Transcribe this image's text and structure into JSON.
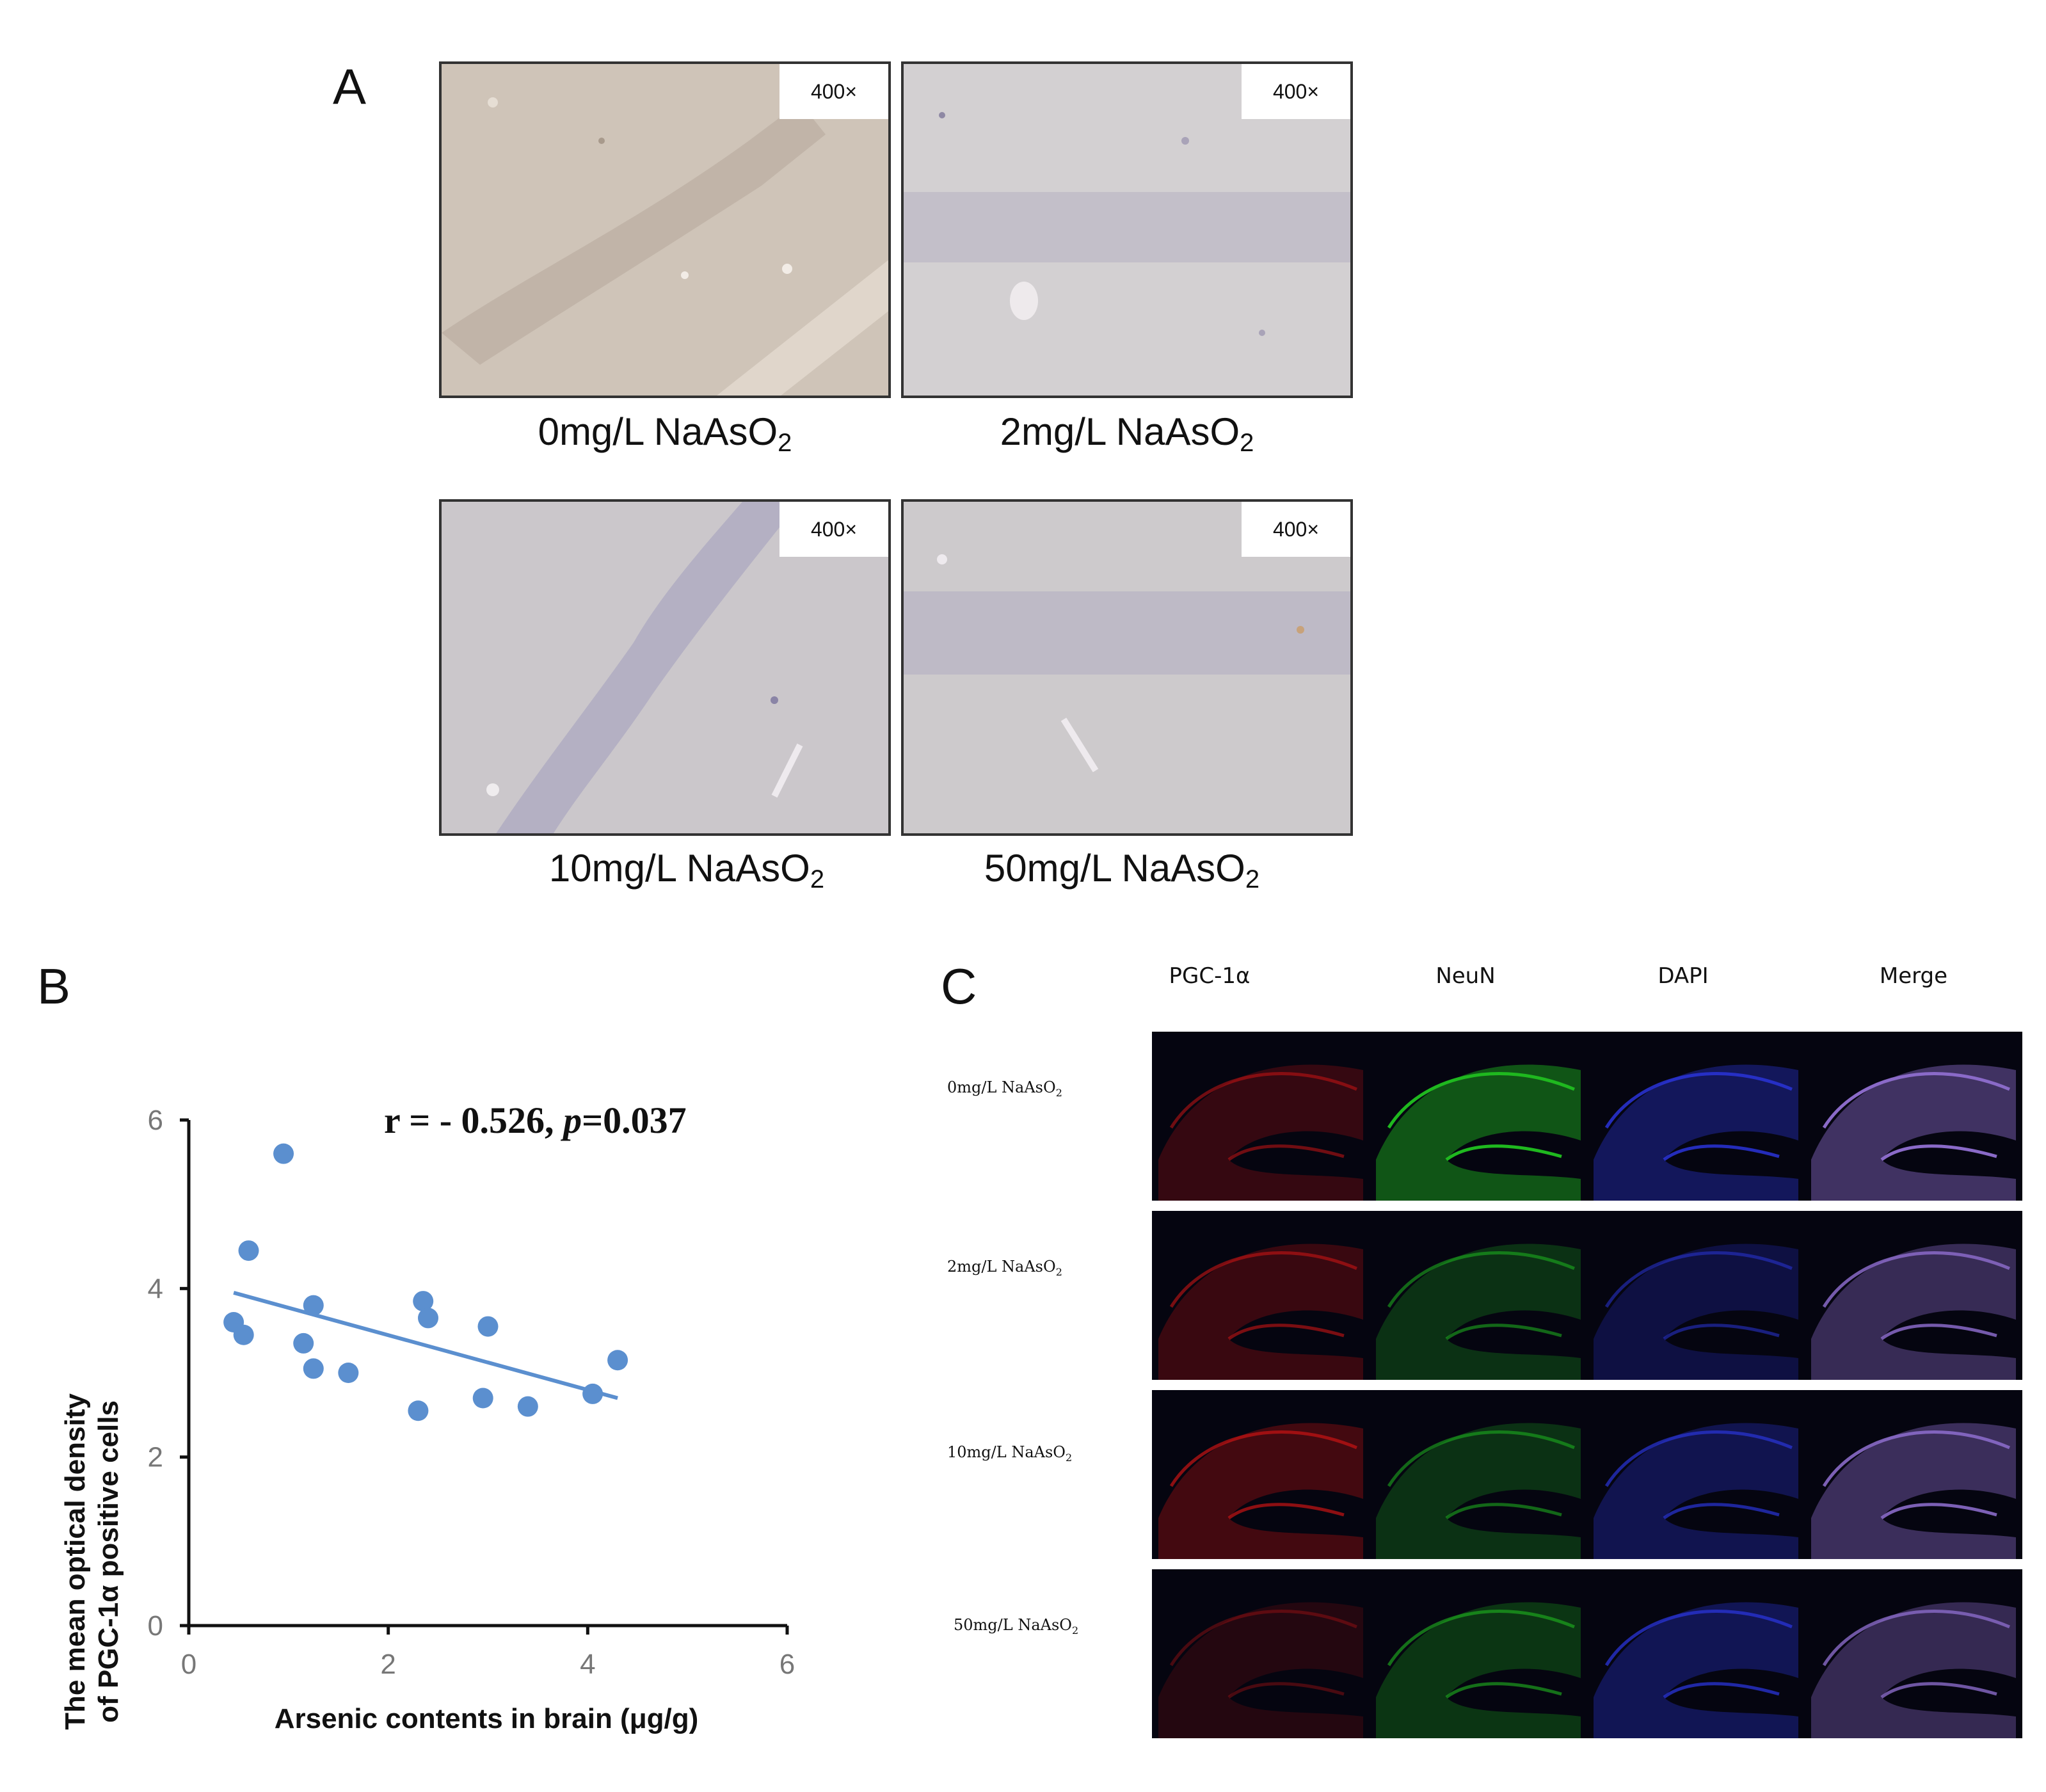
{
  "panels": {
    "A": {
      "letter": "A",
      "magnification": "400×",
      "images": [
        {
          "label_prefix": "0mg/L NaAsO",
          "label_sub": "2"
        },
        {
          "label_prefix": "2mg/L NaAsO",
          "label_sub": "2"
        },
        {
          "label_prefix": "10mg/L NaAsO",
          "label_sub": "2"
        },
        {
          "label_prefix": "50mg/L NaAsO",
          "label_sub": "2"
        }
      ]
    },
    "B": {
      "letter": "B"
    },
    "C": {
      "letter": "C",
      "columns": [
        "PGC-1α",
        "NeuN",
        "DAPI",
        "Merge"
      ],
      "rows": [
        {
          "label_prefix": "0mg/L NaAsO",
          "label_sub": "2"
        },
        {
          "label_prefix": "2mg/L NaAsO",
          "label_sub": "2"
        },
        {
          "label_prefix": "10mg/L NaAsO",
          "label_sub": "2"
        },
        {
          "label_prefix": "50mg/L NaAsO",
          "label_sub": "2"
        }
      ],
      "channel_colors": {
        "PGC-1α": "#c81414",
        "NeuN": "#1fb81f",
        "DAPI": "#2a34d8",
        "Merge": "#8a6ac8"
      }
    }
  },
  "chart_data": {
    "type": "scatter",
    "title_r": "r = - 0.526, ",
    "title_p_label": "p",
    "title_p_value": "=0.037",
    "xlabel": "Arsenic contents in brain (μg/g)",
    "ylabel_line1": "The mean optical density",
    "ylabel_line2": "of PGC-1α positive cells",
    "xlim": [
      0,
      6
    ],
    "ylim": [
      0,
      6
    ],
    "xticks": [
      0,
      2,
      4,
      6
    ],
    "yticks": [
      0,
      2,
      4,
      6
    ],
    "grid": false,
    "marker_color": "#5b8fcf",
    "trendline": {
      "x": [
        0.45,
        4.3
      ],
      "y": [
        3.95,
        2.7
      ]
    },
    "points": [
      {
        "x": 0.95,
        "y": 5.6
      },
      {
        "x": 0.6,
        "y": 4.45
      },
      {
        "x": 0.45,
        "y": 3.6
      },
      {
        "x": 0.55,
        "y": 3.45
      },
      {
        "x": 1.15,
        "y": 3.35
      },
      {
        "x": 1.25,
        "y": 3.8
      },
      {
        "x": 1.25,
        "y": 3.05
      },
      {
        "x": 1.6,
        "y": 3.0
      },
      {
        "x": 2.35,
        "y": 3.85
      },
      {
        "x": 2.4,
        "y": 3.65
      },
      {
        "x": 2.3,
        "y": 2.55
      },
      {
        "x": 2.95,
        "y": 2.7
      },
      {
        "x": 3.0,
        "y": 3.55
      },
      {
        "x": 3.4,
        "y": 2.6
      },
      {
        "x": 4.05,
        "y": 2.75
      },
      {
        "x": 4.3,
        "y": 3.15
      }
    ]
  }
}
